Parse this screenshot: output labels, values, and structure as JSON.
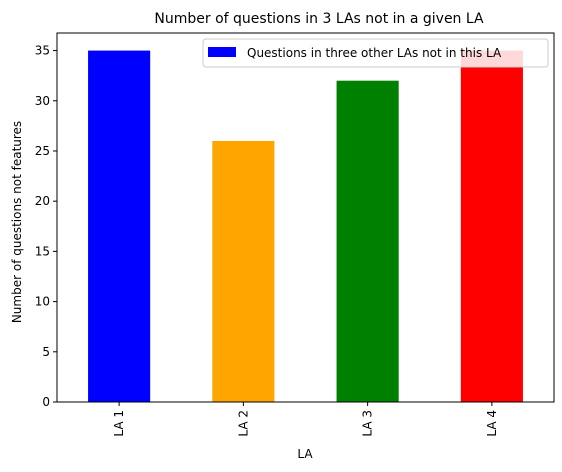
{
  "chart_data": {
    "type": "bar",
    "title": "Number of questions in 3 LAs not in a given LA",
    "xlabel": "LA",
    "ylabel": "Number of questions not features",
    "categories": [
      "LA 1",
      "LA 2",
      "LA 3",
      "LA 4"
    ],
    "values": [
      35,
      26,
      32,
      35
    ],
    "bar_colors": [
      "#0000ff",
      "#ffa500",
      "#008000",
      "#ff0000"
    ],
    "ylim": [
      0,
      36.75
    ],
    "yticks": [
      0,
      5,
      10,
      15,
      20,
      25,
      30,
      35
    ],
    "legend": {
      "label": "Questions in three other LAs not in this LA",
      "color": "#0000ff",
      "placement": "top-right"
    },
    "grid": false
  }
}
